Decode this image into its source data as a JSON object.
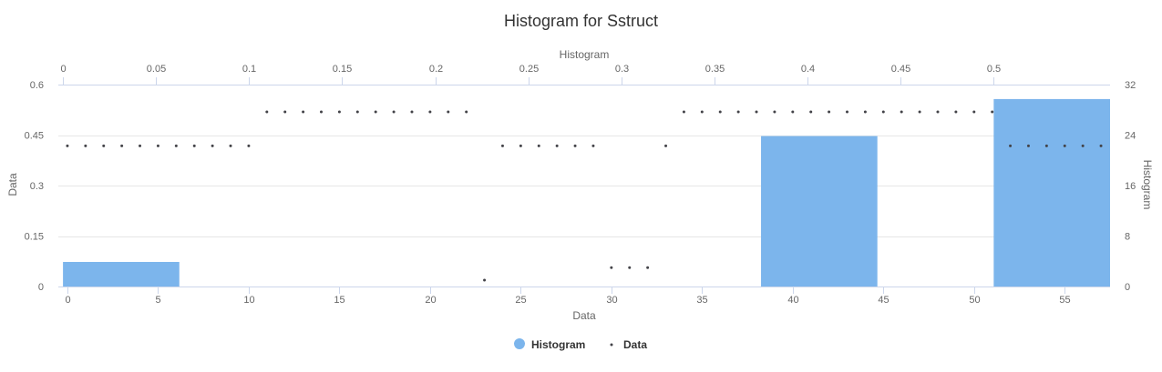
{
  "chart_data": {
    "type": "bar",
    "title": "Histogram for Sstruct",
    "axes": {
      "x_bottom": {
        "title": "Data",
        "range": [
          -0.5,
          57.5
        ],
        "ticks": [
          0,
          5,
          10,
          15,
          20,
          25,
          30,
          35,
          40,
          45,
          50,
          55
        ]
      },
      "x_top": {
        "title": "Histogram",
        "range": [
          -0.0025,
          0.5625
        ],
        "ticks": [
          0,
          0.05,
          0.1,
          0.15,
          0.2,
          0.25,
          0.3,
          0.35,
          0.4,
          0.45,
          0.5
        ]
      },
      "y_left": {
        "title": "Data",
        "range": [
          0,
          0.6
        ],
        "ticks": [
          0,
          0.15,
          0.3,
          0.45,
          0.6
        ]
      },
      "y_right": {
        "title": "Histogram",
        "range": [
          0,
          32
        ],
        "ticks": [
          0,
          8,
          16,
          24,
          32
        ]
      }
    },
    "grid": true,
    "legend_position": "bottom-center",
    "series": [
      {
        "name": "Histogram",
        "type": "column",
        "color": "#7cb5ec",
        "bins": [
          {
            "x0": 0,
            "x1": 0.0625,
            "value": 0.073
          },
          {
            "x0": 0.0625,
            "x1": 0.125,
            "value": 0
          },
          {
            "x0": 0.125,
            "x1": 0.1875,
            "value": 0
          },
          {
            "x0": 0.1875,
            "x1": 0.25,
            "value": 0
          },
          {
            "x0": 0.25,
            "x1": 0.3125,
            "value": 0
          },
          {
            "x0": 0.3125,
            "x1": 0.375,
            "value": 0
          },
          {
            "x0": 0.375,
            "x1": 0.4375,
            "value": 0.447
          },
          {
            "x0": 0.4375,
            "x1": 0.5,
            "value": 0
          },
          {
            "x0": 0.5,
            "x1": 0.5625,
            "value": 0.557
          }
        ]
      },
      {
        "name": "Data",
        "type": "scatter",
        "color": "#434348",
        "x": [
          0,
          1,
          2,
          3,
          4,
          5,
          6,
          7,
          8,
          9,
          10,
          11,
          12,
          13,
          14,
          15,
          16,
          17,
          18,
          19,
          20,
          21,
          22,
          23,
          24,
          25,
          26,
          27,
          28,
          29,
          30,
          31,
          32,
          33,
          34,
          35,
          36,
          37,
          38,
          39,
          40,
          41,
          42,
          43,
          44,
          45,
          46,
          47,
          48,
          49,
          50,
          51,
          52,
          53,
          54,
          55,
          56,
          57
        ],
        "y": [
          0.418,
          0.418,
          0.418,
          0.418,
          0.418,
          0.418,
          0.418,
          0.418,
          0.418,
          0.418,
          0.418,
          0.519,
          0.519,
          0.519,
          0.519,
          0.519,
          0.519,
          0.519,
          0.519,
          0.519,
          0.519,
          0.519,
          0.519,
          0.019,
          0.418,
          0.418,
          0.418,
          0.418,
          0.418,
          0.418,
          0.056,
          0.056,
          0.056,
          0.418,
          0.519,
          0.519,
          0.519,
          0.519,
          0.519,
          0.519,
          0.519,
          0.519,
          0.519,
          0.519,
          0.519,
          0.519,
          0.519,
          0.519,
          0.519,
          0.519,
          0.519,
          0.519,
          0.418,
          0.418,
          0.418,
          0.418,
          0.418,
          0.418
        ]
      }
    ]
  }
}
